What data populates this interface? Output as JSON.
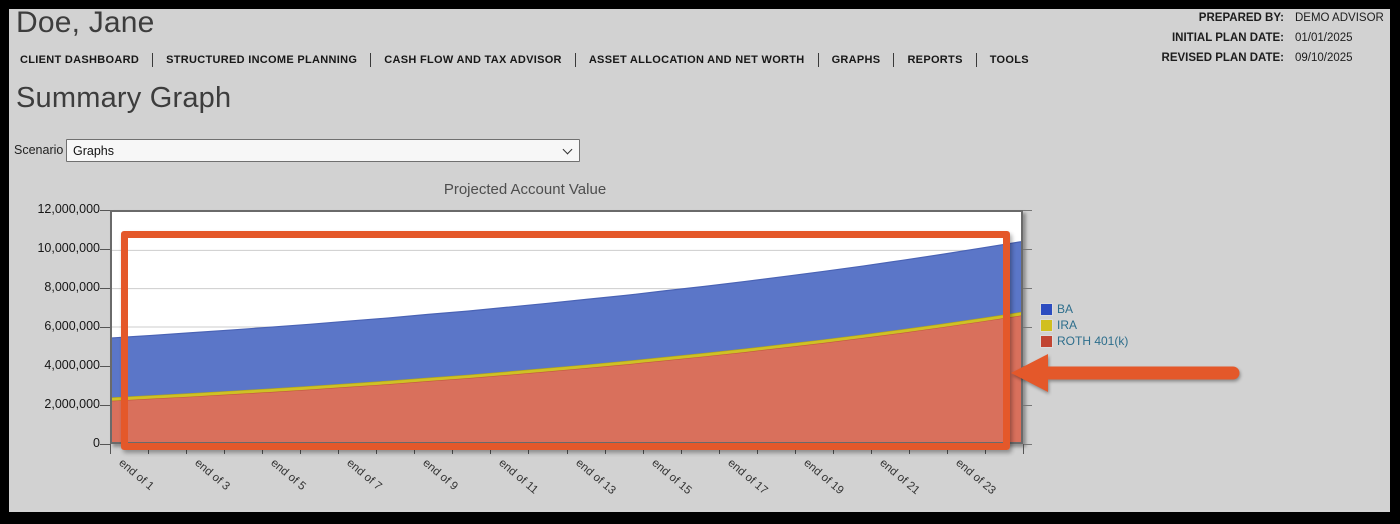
{
  "window": {
    "background": "#d2d2d2",
    "frame_color": "#000000"
  },
  "header": {
    "client_name": "Doe, Jane",
    "plan_info": [
      {
        "label": "PREPARED BY:",
        "value": "DEMO ADVISOR"
      },
      {
        "label": "INITIAL PLAN DATE:",
        "value": "01/01/2025"
      },
      {
        "label": "REVISED PLAN DATE:",
        "value": "09/10/2025"
      }
    ]
  },
  "nav": {
    "items": [
      "CLIENT DASHBOARD",
      "STRUCTURED INCOME PLANNING",
      "CASH FLOW AND TAX ADVISOR",
      "ASSET ALLOCATION AND NET WORTH",
      "GRAPHS",
      "REPORTS",
      "TOOLS"
    ]
  },
  "page": {
    "title": "Summary Graph"
  },
  "scenario": {
    "label": "Scenario",
    "selected": "Graphs"
  },
  "chart_data": {
    "type": "area",
    "stacked": true,
    "title": "Projected Account Value",
    "ylim": [
      0,
      12000000
    ],
    "y_tick_labels": [
      "0",
      "2,000,000",
      "4,000,000",
      "6,000,000",
      "8,000,000",
      "10,000,000",
      "12,000,000"
    ],
    "x_points": 24,
    "x_tick_labels": [
      "end of 1",
      "end of 3",
      "end of 5",
      "end of 7",
      "end of 9",
      "end of 11",
      "end of 13",
      "end of 15",
      "end of 17",
      "end of 19",
      "end of 21",
      "end of 23"
    ],
    "grid": true,
    "plot_background": "#ffffff",
    "gridline_color": "#cdcdcd",
    "series": [
      {
        "name": "ROTH 401(k)",
        "fill": "#d9705c",
        "edge": "#c1573f",
        "values": [
          2150000,
          2260000,
          2370000,
          2490000,
          2610000,
          2740000,
          2880000,
          3020000,
          3180000,
          3330000,
          3500000,
          3680000,
          3860000,
          4050000,
          4260000,
          4470000,
          4690000,
          4930000,
          5170000,
          5430000,
          5700000,
          5990000,
          6290000,
          6600000
        ]
      },
      {
        "name": "IRA",
        "fill": "#cfc125",
        "edge": "#b1a518",
        "values": [
          180000,
          180000,
          180000,
          180000,
          180000,
          180000,
          180000,
          180000,
          180000,
          180000,
          180000,
          180000,
          180000,
          180000,
          180000,
          180000,
          180000,
          180000,
          180000,
          180000,
          180000,
          180000,
          180000,
          180000
        ]
      },
      {
        "name": "BA",
        "fill": "#5b76c8",
        "edge": "#4a63b5",
        "values": [
          3100000,
          3120000,
          3150000,
          3170000,
          3200000,
          3220000,
          3250000,
          3270000,
          3300000,
          3320000,
          3350000,
          3370000,
          3400000,
          3420000,
          3450000,
          3470000,
          3500000,
          3520000,
          3550000,
          3570000,
          3600000,
          3620000,
          3650000,
          3670000
        ]
      }
    ],
    "legend": {
      "position": "right",
      "text_color": "#2d6e8c",
      "items": [
        {
          "label": "BA",
          "color": "#2c4cc0"
        },
        {
          "label": "IRA",
          "color": "#d1bf1f"
        },
        {
          "label": "ROTH 401(k)",
          "color": "#c14533"
        }
      ]
    }
  },
  "annotation": {
    "highlight_border_color": "#e4582a",
    "arrow_color": "#e4582a"
  }
}
